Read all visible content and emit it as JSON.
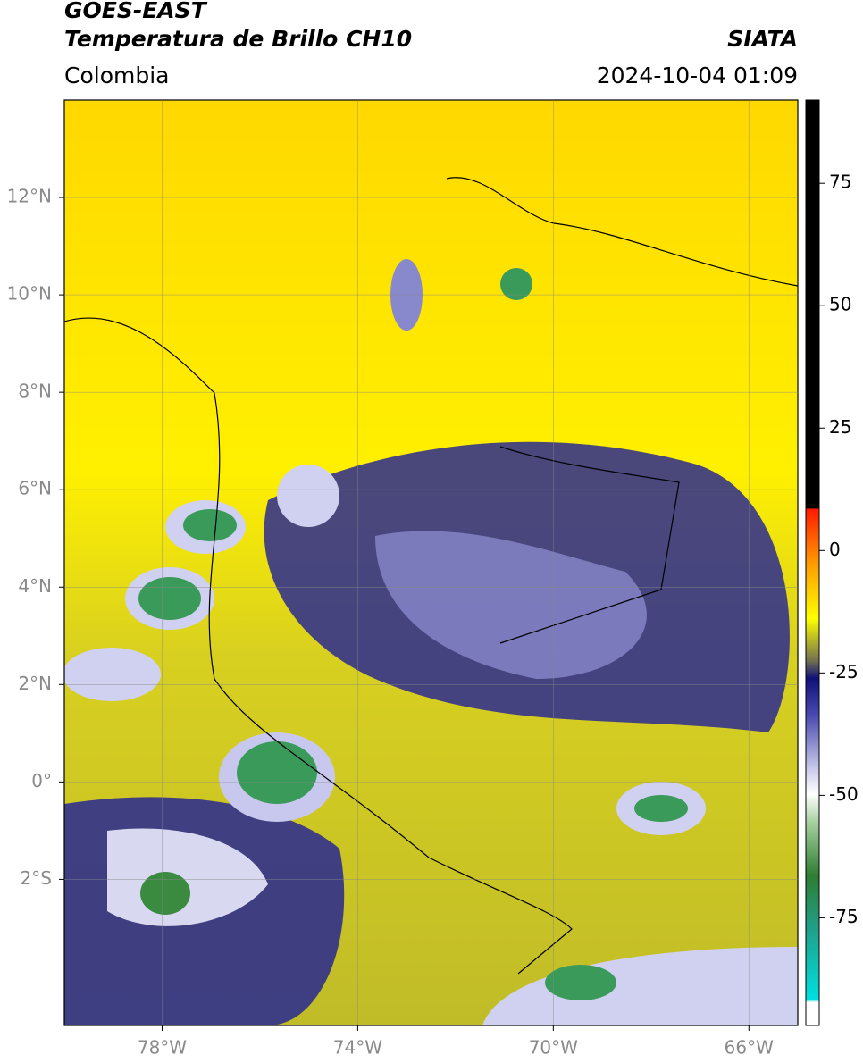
{
  "header": {
    "title": "GOES-EAST",
    "subtitle": "Temperatura de Brillo CH10",
    "brand": "SIATA",
    "region": "Colombia",
    "timestamp": "2024-10-04 01:09"
  },
  "map": {
    "xlim": [
      -80,
      -65
    ],
    "ylim": [
      -5,
      14
    ],
    "xticks": [
      {
        "value": -78,
        "label": "78°W"
      },
      {
        "value": -74,
        "label": "74°W"
      },
      {
        "value": -70,
        "label": "70°W"
      },
      {
        "value": -66,
        "label": "66°W"
      }
    ],
    "yticks": [
      {
        "value": 12,
        "label": "12°N"
      },
      {
        "value": 10,
        "label": "10°N"
      },
      {
        "value": 8,
        "label": "8°N"
      },
      {
        "value": 6,
        "label": "6°N"
      },
      {
        "value": 4,
        "label": "4°N"
      },
      {
        "value": 2,
        "label": "2°N"
      },
      {
        "value": 0,
        "label": "0°"
      },
      {
        "value": -2,
        "label": "2°S"
      }
    ],
    "grid": true
  },
  "colorbar": {
    "lim": [
      -97,
      92
    ],
    "ticks": [
      75,
      50,
      25,
      0,
      -25,
      -50,
      -75
    ]
  }
}
